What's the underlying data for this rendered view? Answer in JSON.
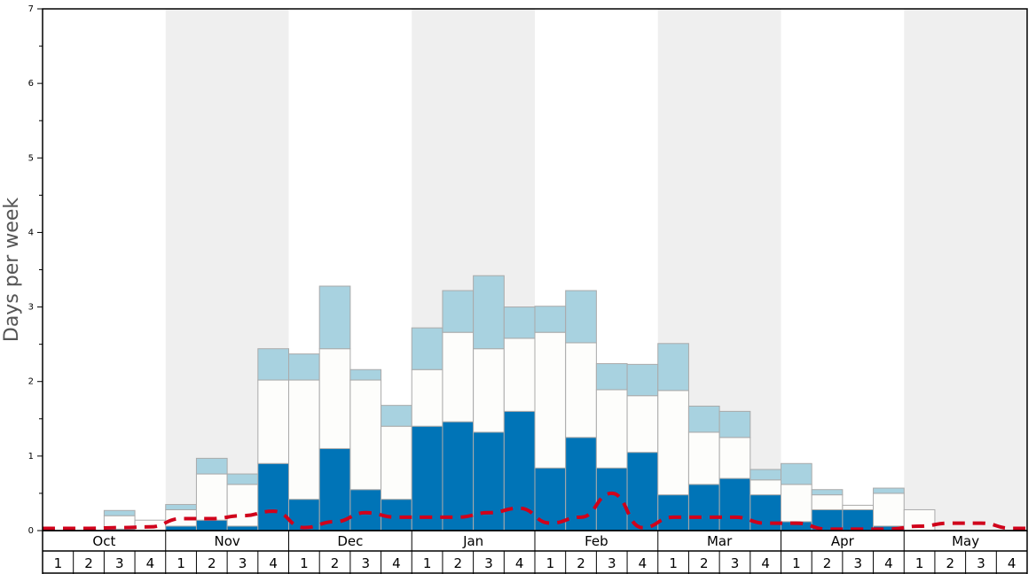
{
  "chart_data": {
    "type": "bar",
    "ylabel": "Days per week",
    "xlabel": "",
    "ylim": [
      0,
      7
    ],
    "yticks": [
      "0",
      "1",
      "2",
      "3",
      "4",
      "5",
      "6",
      "7"
    ],
    "months": [
      "Oct",
      "Nov",
      "Dec",
      "Jan",
      "Feb",
      "Mar",
      "Apr",
      "May"
    ],
    "week_labels": [
      "1",
      "2",
      "3",
      "4"
    ],
    "shaded_months": [
      "Nov",
      "Jan",
      "Mar",
      "May"
    ],
    "colors": {
      "dark": "#0074b7",
      "white": "#fdfdfb",
      "light": "#a8d2e0",
      "line": "#d0021b",
      "shade": "#efefef",
      "border": "#aaaaaa"
    },
    "series": [
      {
        "style": "dark",
        "values": [
          0,
          0,
          0.02,
          0,
          0.06,
          0.14,
          0.06,
          0.9,
          0.42,
          1.1,
          0.55,
          0.42,
          1.4,
          1.46,
          1.32,
          1.6,
          0.84,
          1.25,
          0.84,
          1.05,
          0.48,
          0.62,
          0.7,
          0.48,
          0.12,
          0.28,
          0.28,
          0.06,
          0,
          0,
          0,
          0
        ]
      },
      {
        "style": "white",
        "values": [
          0,
          0,
          0.18,
          0.14,
          0.22,
          0.62,
          0.56,
          1.12,
          1.6,
          1.34,
          1.47,
          0.98,
          0.76,
          1.2,
          1.12,
          0.98,
          1.82,
          1.27,
          1.05,
          0.76,
          1.4,
          0.7,
          0.55,
          0.2,
          0.5,
          0.2,
          0.06,
          0.44,
          0.28,
          0,
          0,
          0
        ]
      },
      {
        "style": "light",
        "values": [
          0,
          0,
          0.07,
          0,
          0.07,
          0.21,
          0.14,
          0.42,
          0.35,
          0.84,
          0.14,
          0.28,
          0.56,
          0.56,
          0.98,
          0.42,
          0.35,
          0.7,
          0.35,
          0.42,
          0.63,
          0.35,
          0.35,
          0.14,
          0.28,
          0.07,
          0,
          0.07,
          0,
          0,
          0,
          0
        ]
      }
    ],
    "line": {
      "style": "dashed",
      "values": [
        0.03,
        0.03,
        0.04,
        0.05,
        0.16,
        0.16,
        0.2,
        0.26,
        0.04,
        0.12,
        0.24,
        0.18,
        0.18,
        0.18,
        0.24,
        0.3,
        0.1,
        0.18,
        0.5,
        0.04,
        0.18,
        0.18,
        0.18,
        0.1,
        0.1,
        0.02,
        0.02,
        0.02,
        0.06,
        0.1,
        0.1,
        0.03
      ]
    }
  }
}
